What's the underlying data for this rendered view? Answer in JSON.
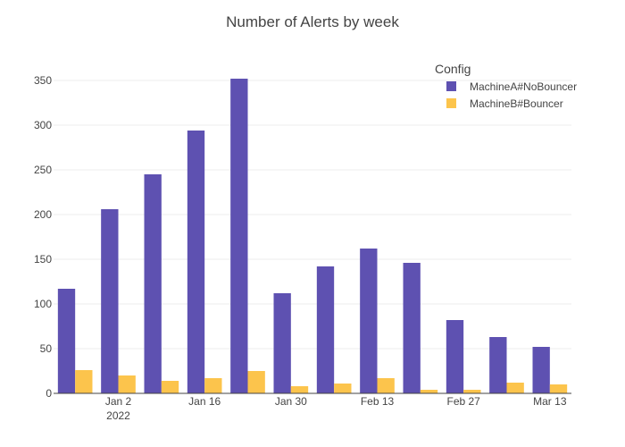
{
  "chart_data": {
    "type": "bar",
    "title": "Number of Alerts by week",
    "xlabel": "",
    "ylabel": "",
    "x": [
      "2021-12-26",
      "2022-01-02",
      "2022-01-09",
      "2022-01-16",
      "2022-01-23",
      "2022-01-30",
      "2022-02-06",
      "2022-02-13",
      "2022-02-20",
      "2022-02-27",
      "2022-03-06",
      "2022-03-13"
    ],
    "x_tick_labels": [
      {
        "x": "2022-01-02",
        "lines": [
          "Jan 2",
          "2022"
        ]
      },
      {
        "x": "2022-01-16",
        "lines": [
          "Jan 16"
        ]
      },
      {
        "x": "2022-01-30",
        "lines": [
          "Jan 30"
        ]
      },
      {
        "x": "2022-02-13",
        "lines": [
          "Feb 13"
        ]
      },
      {
        "x": "2022-02-27",
        "lines": [
          "Feb 27"
        ]
      },
      {
        "x": "2022-03-13",
        "lines": [
          "Mar 13"
        ]
      }
    ],
    "ylim": [
      0,
      360
    ],
    "y_ticks": [
      0,
      50,
      100,
      150,
      200,
      250,
      300,
      350
    ],
    "grid": true,
    "legend": {
      "title": "Config",
      "position": "top-right"
    },
    "series": [
      {
        "name": "MachineA#NoBouncer",
        "color": "#5e51b1",
        "values": [
          117,
          206,
          245,
          294,
          352,
          112,
          142,
          162,
          146,
          82,
          63,
          52
        ]
      },
      {
        "name": "MachineB#Bouncer",
        "color": "#fcc44c",
        "values": [
          26,
          20,
          14,
          17,
          25,
          8,
          11,
          17,
          4,
          4,
          12,
          10
        ]
      }
    ]
  }
}
